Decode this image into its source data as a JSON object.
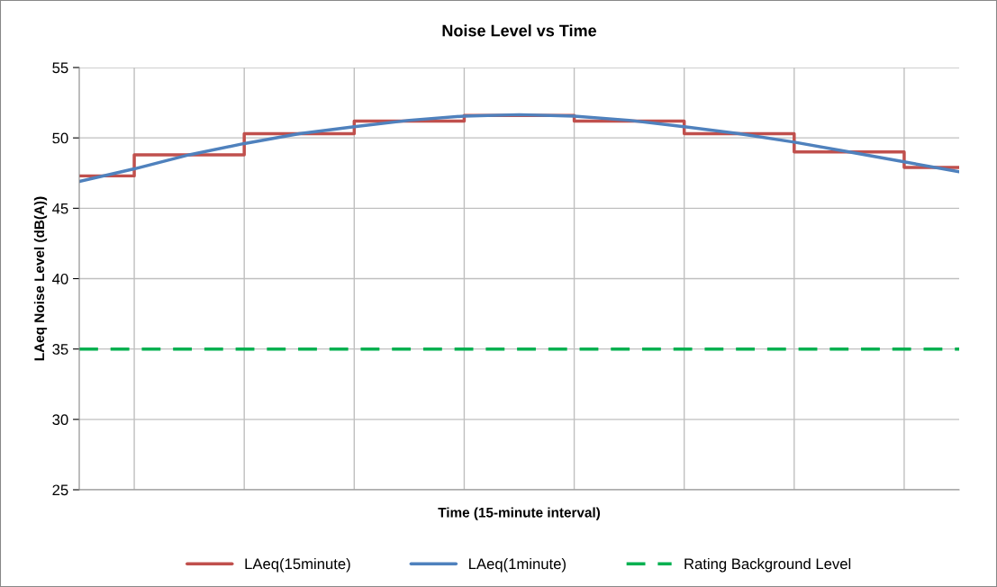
{
  "chart_data": {
    "type": "line",
    "title": "Noise Level vs Time",
    "xlabel": "Time (15-minute interval)",
    "ylabel": "LAeq Noise Level (dB(A))",
    "categories": [
      null,
      null,
      null,
      null,
      null,
      null,
      null,
      null,
      null,
      null,
      null,
      null,
      null,
      null,
      null,
      null,
      null
    ],
    "ylim": [
      25,
      55
    ],
    "yticks": [
      25,
      30,
      35,
      40,
      45,
      50,
      55
    ],
    "tick_labels": "y",
    "grid": true,
    "legend": "bottom",
    "marker": "none",
    "series": [
      {
        "name": "LAeq(15minute)",
        "type": "step",
        "color": "#c0504d",
        "values": [
          47.3,
          48.8,
          48.8,
          50.3,
          50.3,
          51.2,
          51.2,
          51.6,
          51.6,
          51.2,
          51.2,
          50.3,
          50.3,
          49.0,
          49.0,
          47.9,
          47.9
        ]
      },
      {
        "name": "LAeq(1minute)",
        "color": "#4f81bd",
        "values": [
          46.9,
          47.8,
          48.8,
          49.6,
          50.3,
          50.8,
          51.25,
          51.55,
          51.65,
          51.55,
          51.25,
          50.8,
          50.3,
          49.7,
          49.0,
          48.3,
          47.6
        ]
      }
    ],
    "ref_lines": [
      {
        "axis": "y",
        "value": 35,
        "label": "Rating Background Level",
        "color": "#00b050",
        "line_style": "dashed"
      }
    ]
  }
}
